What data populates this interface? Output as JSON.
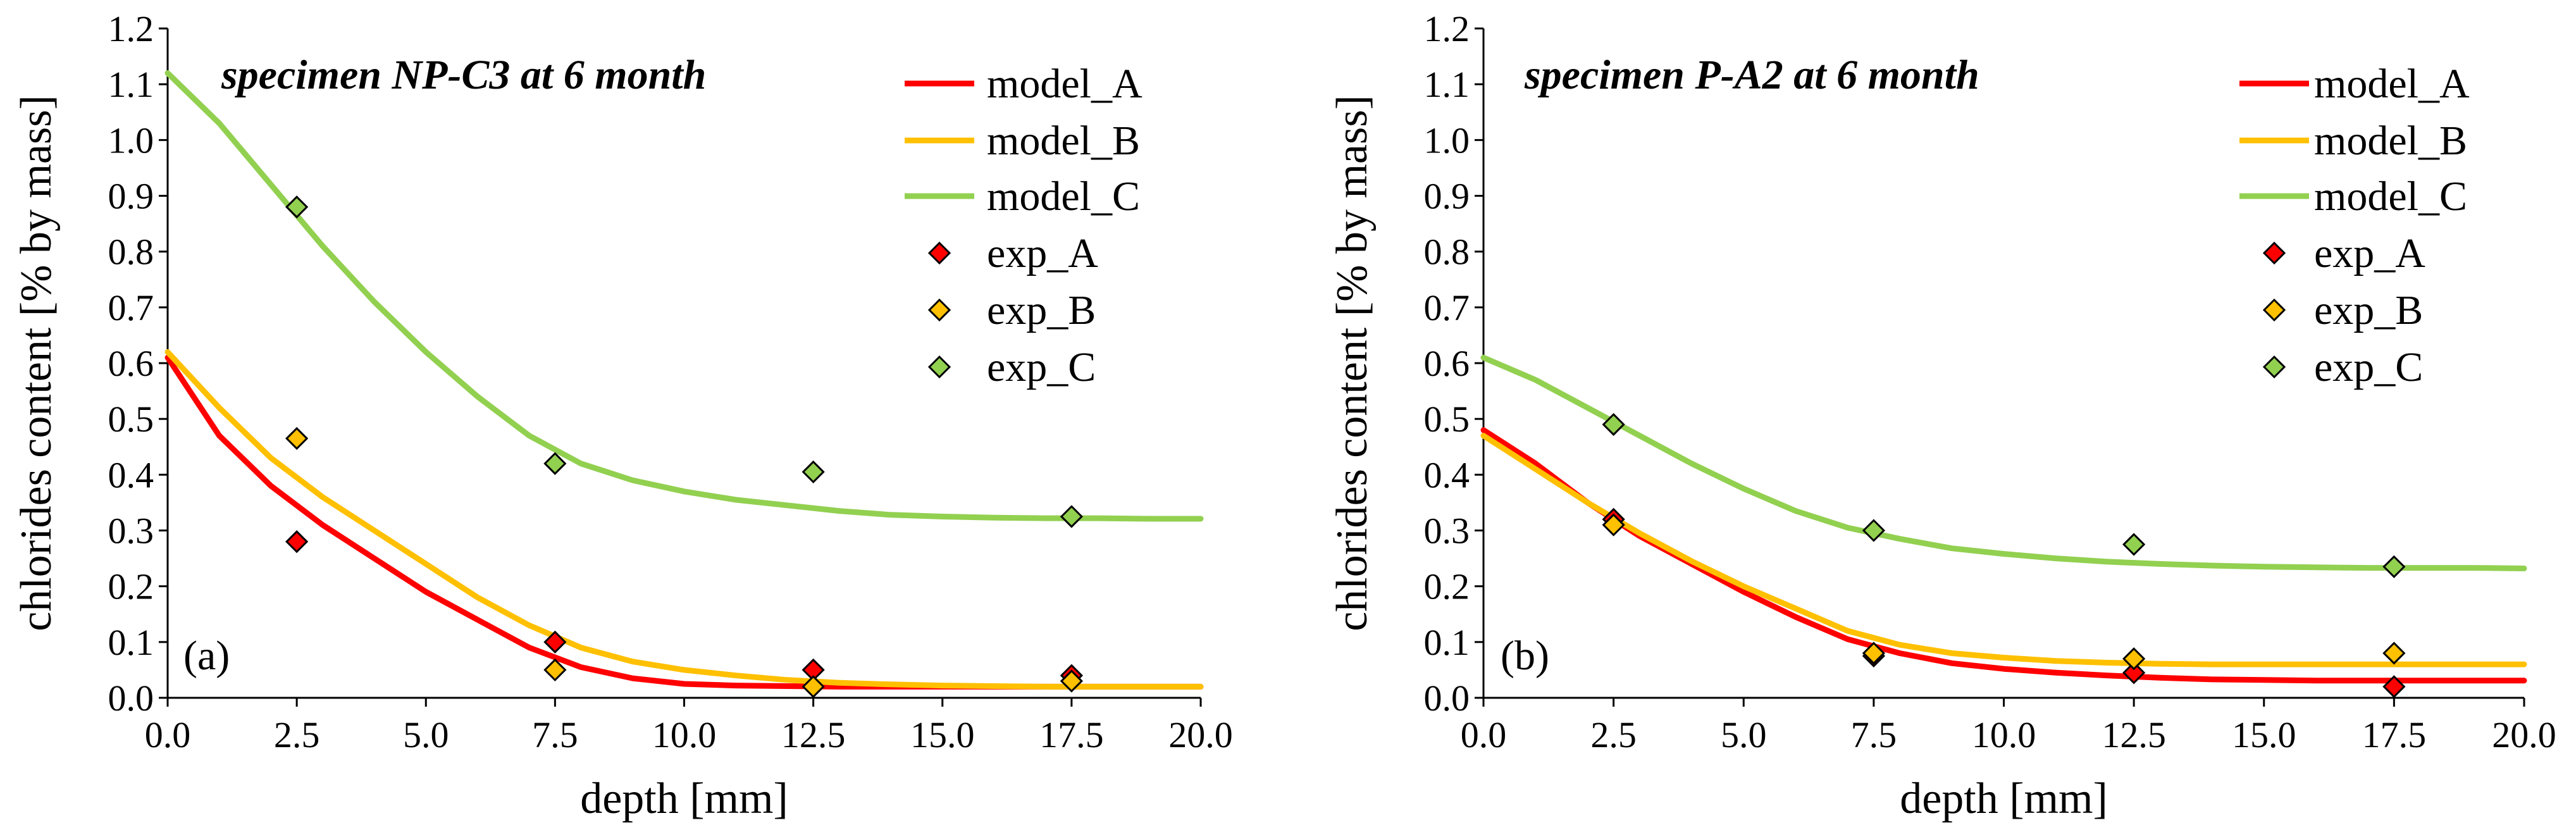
{
  "chart_data": [
    {
      "type": "line",
      "panel_label": "(a)",
      "title": "specimen NP-C3 at 6 month",
      "xlabel": "depth [mm]",
      "ylabel": "chlorides content [% by mass]",
      "xlim": [
        0,
        20
      ],
      "ylim": [
        0,
        1.2
      ],
      "xticks": [
        "0.0",
        "2.5",
        "5.0",
        "7.5",
        "10.0",
        "12.5",
        "15.0",
        "17.5",
        "20.0"
      ],
      "yticks": [
        "0.0",
        "0.1",
        "0.2",
        "0.3",
        "0.4",
        "0.5",
        "0.6",
        "0.7",
        "0.8",
        "0.9",
        "1.0",
        "1.1",
        "1.2"
      ],
      "grid": false,
      "legend_position": "top-right",
      "series": [
        {
          "name": "model_A",
          "kind": "line",
          "color": "#ff0000",
          "x": [
            0,
            1,
            2,
            3,
            4,
            5,
            6,
            7,
            8,
            9,
            10,
            11,
            12,
            13,
            14,
            15,
            16,
            17,
            18,
            19,
            20
          ],
          "y": [
            0.61,
            0.47,
            0.38,
            0.31,
            0.25,
            0.19,
            0.14,
            0.09,
            0.055,
            0.035,
            0.025,
            0.022,
            0.021,
            0.02,
            0.02,
            0.02,
            0.02,
            0.02,
            0.02,
            0.02,
            0.02
          ]
        },
        {
          "name": "model_B",
          "kind": "line",
          "color": "#ffc000",
          "x": [
            0,
            1,
            2,
            3,
            4,
            5,
            6,
            7,
            8,
            9,
            10,
            11,
            12,
            13,
            14,
            15,
            16,
            17,
            18,
            19,
            20
          ],
          "y": [
            0.62,
            0.52,
            0.43,
            0.36,
            0.3,
            0.24,
            0.18,
            0.13,
            0.09,
            0.065,
            0.05,
            0.04,
            0.032,
            0.027,
            0.024,
            0.022,
            0.021,
            0.02,
            0.02,
            0.02,
            0.02
          ]
        },
        {
          "name": "model_C",
          "kind": "line",
          "color": "#92d050",
          "x": [
            0,
            1,
            2,
            3,
            4,
            5,
            6,
            7,
            8,
            9,
            10,
            11,
            12,
            13,
            14,
            15,
            16,
            17,
            18,
            19,
            20
          ],
          "y": [
            1.12,
            1.03,
            0.92,
            0.81,
            0.71,
            0.62,
            0.54,
            0.47,
            0.42,
            0.39,
            0.37,
            0.355,
            0.345,
            0.335,
            0.328,
            0.325,
            0.323,
            0.322,
            0.322,
            0.321,
            0.321
          ]
        },
        {
          "name": "exp_A",
          "kind": "scatter",
          "color": "#ff0000",
          "x": [
            2.5,
            7.5,
            12.5,
            17.5
          ],
          "y": [
            0.28,
            0.1,
            0.05,
            0.04
          ]
        },
        {
          "name": "exp_B",
          "kind": "scatter",
          "color": "#ffc000",
          "x": [
            2.5,
            7.5,
            12.5,
            17.5
          ],
          "y": [
            0.465,
            0.05,
            0.02,
            0.03
          ]
        },
        {
          "name": "exp_C",
          "kind": "scatter",
          "color": "#92d050",
          "x": [
            2.5,
            7.5,
            12.5,
            17.5
          ],
          "y": [
            0.88,
            0.42,
            0.405,
            0.325
          ]
        }
      ]
    },
    {
      "type": "line",
      "panel_label": "(b)",
      "title": "specimen P-A2 at 6 month",
      "xlabel": "depth [mm]",
      "ylabel": "chlorides content [% by mass]",
      "xlim": [
        0,
        20
      ],
      "ylim": [
        0,
        1.2
      ],
      "xticks": [
        "0.0",
        "2.5",
        "5.0",
        "7.5",
        "10.0",
        "12.5",
        "15.0",
        "17.5",
        "20.0"
      ],
      "yticks": [
        "0.0",
        "0.1",
        "0.2",
        "0.3",
        "0.4",
        "0.5",
        "0.6",
        "0.7",
        "0.8",
        "0.9",
        "1.0",
        "1.1",
        "1.2"
      ],
      "grid": false,
      "legend_position": "top-right",
      "series": [
        {
          "name": "model_A",
          "kind": "line",
          "color": "#ff0000",
          "x": [
            0,
            1,
            2,
            3,
            4,
            5,
            6,
            7,
            8,
            9,
            10,
            11,
            12,
            13,
            14,
            15,
            16,
            17,
            18,
            19,
            20
          ],
          "y": [
            0.48,
            0.42,
            0.35,
            0.29,
            0.24,
            0.19,
            0.145,
            0.105,
            0.08,
            0.062,
            0.052,
            0.045,
            0.04,
            0.036,
            0.033,
            0.032,
            0.031,
            0.031,
            0.031,
            0.031,
            0.031
          ]
        },
        {
          "name": "model_B",
          "kind": "line",
          "color": "#ffc000",
          "x": [
            0,
            1,
            2,
            3,
            4,
            5,
            6,
            7,
            8,
            9,
            10,
            11,
            12,
            13,
            14,
            15,
            16,
            17,
            18,
            19,
            20
          ],
          "y": [
            0.47,
            0.41,
            0.35,
            0.295,
            0.245,
            0.2,
            0.16,
            0.12,
            0.095,
            0.08,
            0.072,
            0.066,
            0.063,
            0.061,
            0.06,
            0.06,
            0.06,
            0.06,
            0.06,
            0.06,
            0.06
          ]
        },
        {
          "name": "model_C",
          "kind": "line",
          "color": "#92d050",
          "x": [
            0,
            1,
            2,
            3,
            4,
            5,
            6,
            7,
            8,
            9,
            10,
            11,
            12,
            13,
            14,
            15,
            16,
            17,
            18,
            19,
            20
          ],
          "y": [
            0.61,
            0.57,
            0.52,
            0.47,
            0.42,
            0.375,
            0.335,
            0.305,
            0.285,
            0.268,
            0.258,
            0.25,
            0.244,
            0.24,
            0.237,
            0.235,
            0.234,
            0.233,
            0.233,
            0.233,
            0.232
          ]
        },
        {
          "name": "exp_A",
          "kind": "scatter",
          "color": "#ff0000",
          "x": [
            2.5,
            7.5,
            12.5,
            17.5
          ],
          "y": [
            0.32,
            0.075,
            0.045,
            0.02
          ]
        },
        {
          "name": "exp_B",
          "kind": "scatter",
          "color": "#ffc000",
          "x": [
            2.5,
            7.5,
            12.5,
            17.5
          ],
          "y": [
            0.31,
            0.08,
            0.07,
            0.08
          ]
        },
        {
          "name": "exp_C",
          "kind": "scatter",
          "color": "#92d050",
          "x": [
            2.5,
            7.5,
            12.5,
            17.5
          ],
          "y": [
            0.49,
            0.3,
            0.275,
            0.235
          ]
        }
      ]
    }
  ]
}
